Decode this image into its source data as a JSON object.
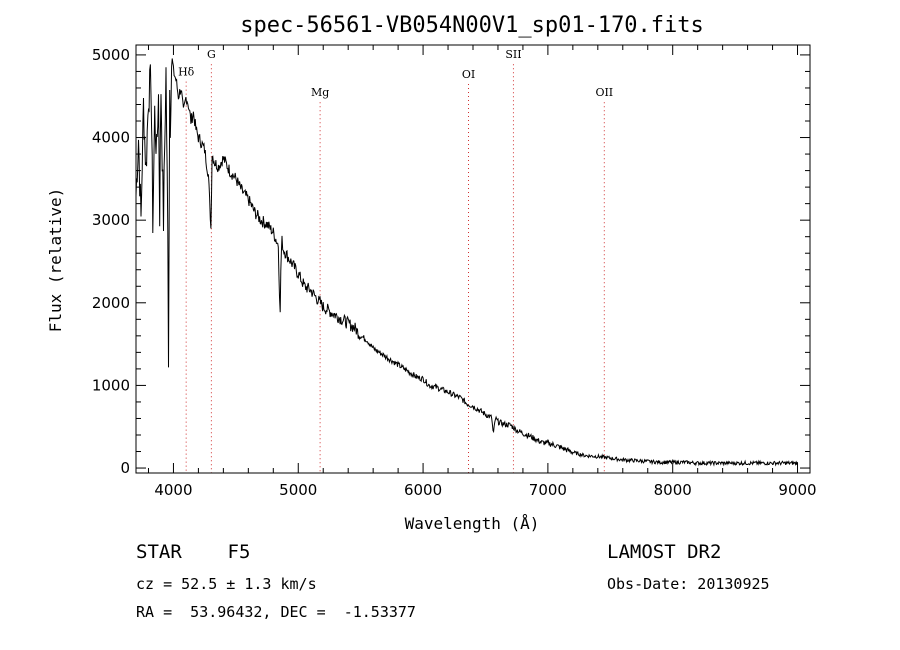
{
  "chart_data": {
    "type": "line",
    "title": "spec-56561-VB054N00V1_sp01-170.fits",
    "xlabel": "Wavelength (Å)",
    "ylabel": "Flux (relative)",
    "xlim": [
      3700,
      9100
    ],
    "ylim": [
      -60,
      5120
    ],
    "xticks": [
      4000,
      5000,
      6000,
      7000,
      8000,
      9000
    ],
    "yticks": [
      0,
      1000,
      2000,
      3000,
      4000,
      5000
    ],
    "grid": false,
    "lines": [
      {
        "label": "Hδ",
        "x": 4102,
        "level": 4750
      },
      {
        "label": "G",
        "x": 4304,
        "level": 4960
      },
      {
        "label": "Mg",
        "x": 5175,
        "level": 4500
      },
      {
        "label": "OI",
        "x": 6364,
        "level": 4720
      },
      {
        "label": "SII",
        "x": 6724,
        "level": 4960
      },
      {
        "label": "OII",
        "x": 7452,
        "level": 4500
      }
    ],
    "series": [
      {
        "x": [
          3700,
          3720,
          3740,
          3760,
          3780,
          3800,
          3820,
          3835,
          3850,
          3865,
          3880,
          3890,
          3900,
          3920,
          3940,
          3955,
          3960,
          3970,
          3975,
          3985,
          4000,
          4020,
          4040,
          4060,
          4080,
          4102,
          4120,
          4140,
          4160,
          4180,
          4200,
          4220,
          4250,
          4280,
          4300,
          4310,
          4330,
          4360,
          4400,
          4450,
          4500,
          4550,
          4600,
          4650,
          4700,
          4750,
          4800,
          4840,
          4855,
          4861,
          4870,
          4880,
          4920,
          4960,
          5000,
          5050,
          5100,
          5150,
          5200,
          5250,
          5300,
          5350,
          5400,
          5450,
          5500,
          5550,
          5600,
          5650,
          5700,
          5750,
          5800,
          5850,
          5900,
          5950,
          6000,
          6050,
          6100,
          6150,
          6200,
          6250,
          6300,
          6350,
          6400,
          6450,
          6500,
          6550,
          6563,
          6580,
          6600,
          6650,
          6700,
          6750,
          6800,
          6850,
          6900,
          6950,
          7000,
          7050,
          7100,
          7150,
          7200,
          7250,
          7300,
          7400,
          7500,
          7600,
          7700,
          7800,
          7900,
          8000,
          8100,
          8200,
          8300,
          8400,
          8500,
          8600,
          8700,
          8800,
          8900,
          9000
        ],
        "y": [
          3300,
          4000,
          3000,
          4400,
          3600,
          4500,
          4700,
          3000,
          4300,
          3800,
          4500,
          3100,
          4600,
          3000,
          4800,
          2800,
          1400,
          4600,
          4200,
          4900,
          4800,
          4700,
          4500,
          4600,
          4300,
          4500,
          4400,
          4200,
          4300,
          4100,
          4000,
          3950,
          3850,
          3550,
          2900,
          3800,
          3700,
          3650,
          3750,
          3600,
          3500,
          3350,
          3250,
          3100,
          3000,
          2950,
          2850,
          2700,
          1850,
          2500,
          2750,
          2650,
          2550,
          2450,
          2350,
          2200,
          2150,
          2050,
          1950,
          1900,
          1850,
          1800,
          1750,
          1700,
          1600,
          1550,
          1450,
          1400,
          1350,
          1300,
          1250,
          1200,
          1150,
          1100,
          1080,
          1000,
          980,
          950,
          920,
          880,
          850,
          780,
          750,
          700,
          650,
          610,
          400,
          600,
          560,
          530,
          520,
          460,
          420,
          390,
          350,
          310,
          300,
          280,
          250,
          220,
          190,
          170,
          150,
          140,
          120,
          100,
          90,
          80,
          70,
          70,
          70,
          60,
          60,
          60,
          60,
          60,
          60,
          60,
          60,
          60
        ]
      }
    ]
  },
  "info": {
    "star_line": "STAR    F5",
    "cz_line": "cz = 52.5 ± 1.3 km/s",
    "coord_line": "RA =  53.96432, DEC =  -1.53377",
    "survey": "LAMOST DR2",
    "obs_date": "Obs-Date: 20130925"
  }
}
